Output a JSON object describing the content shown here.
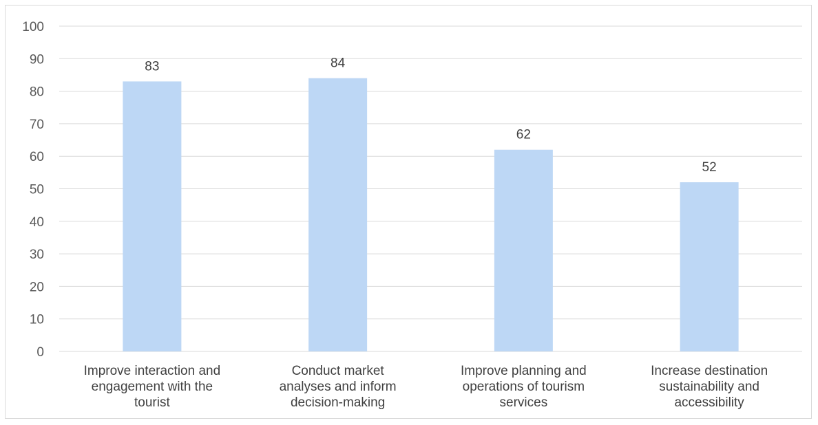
{
  "chart_data": {
    "type": "bar",
    "categories": [
      [
        "Improve interaction and",
        "engagement with the",
        "tourist"
      ],
      [
        "Conduct market",
        "analyses and inform",
        "decision-making"
      ],
      [
        "Improve planning and",
        "operations of tourism",
        "services"
      ],
      [
        "Increase destination",
        "sustainability and",
        "accessibility"
      ]
    ],
    "values": [
      83,
      84,
      62,
      52
    ],
    "data_labels": [
      "83",
      "84",
      "62",
      "52"
    ],
    "ylim": [
      0,
      100
    ],
    "yticks": [
      "0",
      "10",
      "20",
      "30",
      "40",
      "50",
      "60",
      "70",
      "80",
      "90",
      "100"
    ],
    "grid": true,
    "legend": "none",
    "colors": {
      "bar": "#bdd7f5",
      "grid": "#d9d9d9",
      "text": "#404040",
      "tick_text": "#595959"
    }
  }
}
